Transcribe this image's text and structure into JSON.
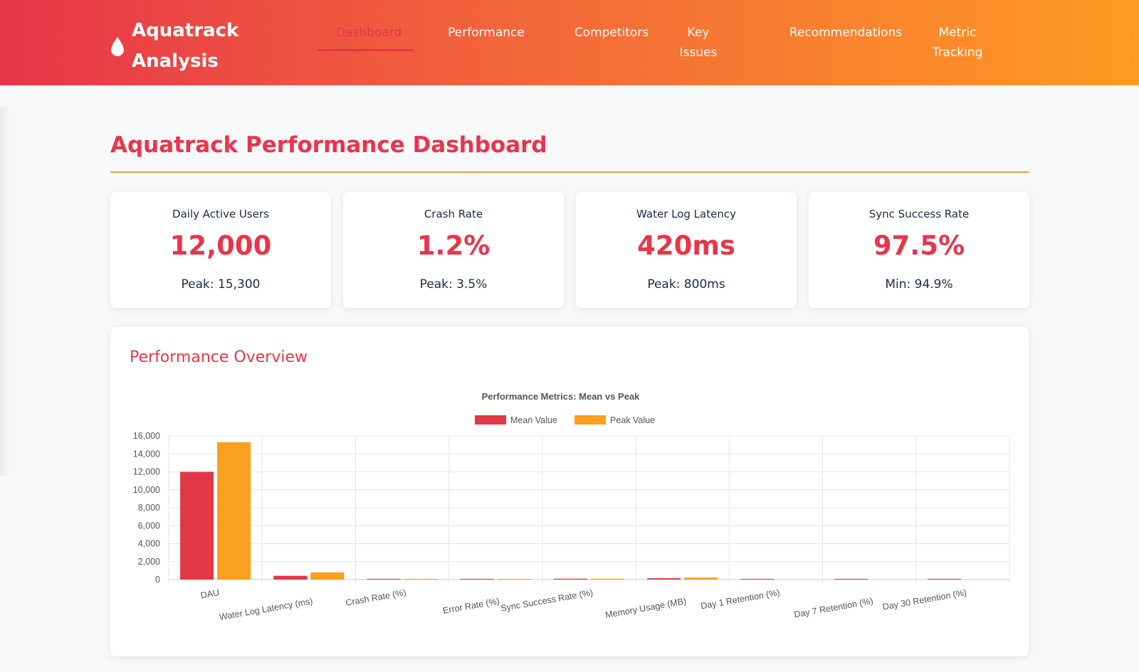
{
  "app": {
    "logo_icon": "water-drop-icon",
    "logo_text": "Aquatrack Analysis"
  },
  "nav": {
    "items": [
      {
        "label": "Dashboard",
        "active": true
      },
      {
        "label": "Performance",
        "active": false
      },
      {
        "label": "Competitors",
        "active": false
      },
      {
        "label": "Key Issues",
        "active": false
      },
      {
        "label": "Recommendations",
        "active": false
      },
      {
        "label": "Metric Tracking",
        "active": false
      }
    ]
  },
  "page": {
    "title": "Aquatrack Performance Dashboard"
  },
  "stats": [
    {
      "label": "Daily Active Users",
      "value": "12,000",
      "sub": "Peak: 15,300"
    },
    {
      "label": "Crash Rate",
      "value": "1.2%",
      "sub": "Peak: 3.5%"
    },
    {
      "label": "Water Log Latency",
      "value": "420ms",
      "sub": "Peak: 800ms"
    },
    {
      "label": "Sync Success Rate",
      "value": "97.5%",
      "sub": "Min: 94.9%"
    }
  ],
  "overview": {
    "title": "Performance Overview"
  },
  "colors": {
    "accent": "#e8354a",
    "mean": "#e23744",
    "peak": "#fb9f1e"
  },
  "chart_data": {
    "type": "bar",
    "title": "Performance Metrics: Mean vs Peak",
    "categories": [
      "DAU",
      "Water Log Latency (ms)",
      "Crash Rate (%)",
      "Error Rate (%)",
      "Sync Success Rate (%)",
      "Memory Usage (MB)",
      "Day 1 Retention (%)",
      "Day 7 Retention (%)",
      "Day 30 Retention (%)"
    ],
    "series": [
      {
        "name": "Mean Value",
        "values": [
          12000,
          420,
          1.2,
          2,
          97.5,
          150,
          45,
          25,
          15
        ]
      },
      {
        "name": "Peak Value",
        "values": [
          15300,
          800,
          3.5,
          5,
          99,
          220,
          0,
          0,
          0
        ]
      }
    ],
    "ylim": [
      0,
      16000
    ],
    "yticks": [
      "0",
      "2,000",
      "4,000",
      "6,000",
      "8,000",
      "10,000",
      "12,000",
      "14,000",
      "16,000"
    ],
    "legend_position": "top",
    "grid": true
  }
}
